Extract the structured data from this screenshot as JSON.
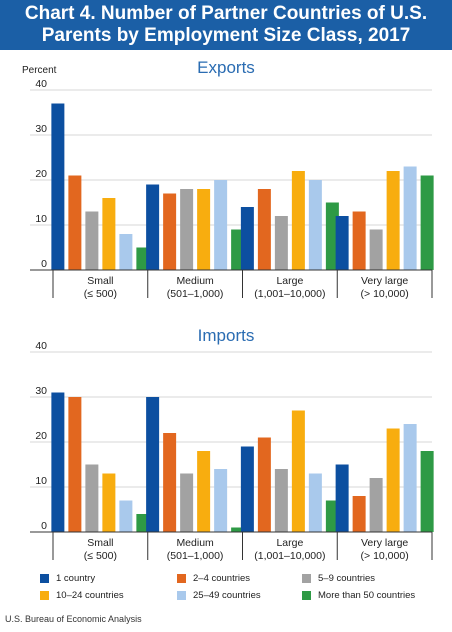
{
  "title": {
    "line1": "Chart 4. Number of Partner Countries of U.S.",
    "line2": "Parents by Employment Size Class, 2017"
  },
  "source": "U.S. Bureau of Economic Analysis",
  "colors": {
    "title_background": "#1b5fa6",
    "panel_title": "#2a6cb2",
    "series": [
      "#0c4fa0",
      "#e2671f",
      "#a2a2a2",
      "#f8ad0f",
      "#a9c9ec",
      "#2e9a45"
    ]
  },
  "chart_data": [
    {
      "type": "bar",
      "title": "Exports",
      "ylabel": "Percent",
      "ylim": [
        0,
        40
      ],
      "yticks": [
        0,
        10,
        20,
        30,
        40
      ],
      "grid": true,
      "legend": "bottom",
      "categories": [
        [
          "Small",
          "(≤ 500)"
        ],
        [
          "Medium",
          "(501–1,000)"
        ],
        [
          "Large",
          "(1,001–10,000)"
        ],
        [
          "Very large",
          "(> 10,000)"
        ]
      ],
      "series": [
        {
          "name": "1 country",
          "values": [
            37,
            19,
            14,
            12
          ]
        },
        {
          "name": "2–4 countries",
          "values": [
            21,
            17,
            18,
            13
          ]
        },
        {
          "name": "5–9 countries",
          "values": [
            13,
            18,
            12,
            9
          ]
        },
        {
          "name": "10–24 countries",
          "values": [
            16,
            18,
            22,
            22
          ]
        },
        {
          "name": "25–49 countries",
          "values": [
            8,
            20,
            20,
            23
          ]
        },
        {
          "name": "More than 50 countries",
          "values": [
            5,
            9,
            15,
            21
          ]
        }
      ]
    },
    {
      "type": "bar",
      "title": "Imports",
      "ylabel": "",
      "ylim": [
        0,
        40
      ],
      "yticks": [
        0,
        10,
        20,
        30,
        40
      ],
      "grid": true,
      "legend": "bottom",
      "categories": [
        [
          "Small",
          "(≤ 500)"
        ],
        [
          "Medium",
          "(501–1,000)"
        ],
        [
          "Large",
          "(1,001–10,000)"
        ],
        [
          "Very large",
          "(> 10,000)"
        ]
      ],
      "series": [
        {
          "name": "1 country",
          "values": [
            31,
            30,
            19,
            15
          ]
        },
        {
          "name": "2–4 countries",
          "values": [
            30,
            22,
            21,
            8
          ]
        },
        {
          "name": "5–9 countries",
          "values": [
            15,
            13,
            14,
            12
          ]
        },
        {
          "name": "10–24 countries",
          "values": [
            13,
            18,
            27,
            23
          ]
        },
        {
          "name": "25–49 countries",
          "values": [
            7,
            14,
            13,
            24
          ]
        },
        {
          "name": "More than 50 countries",
          "values": [
            4,
            1,
            7,
            18
          ]
        }
      ]
    }
  ]
}
